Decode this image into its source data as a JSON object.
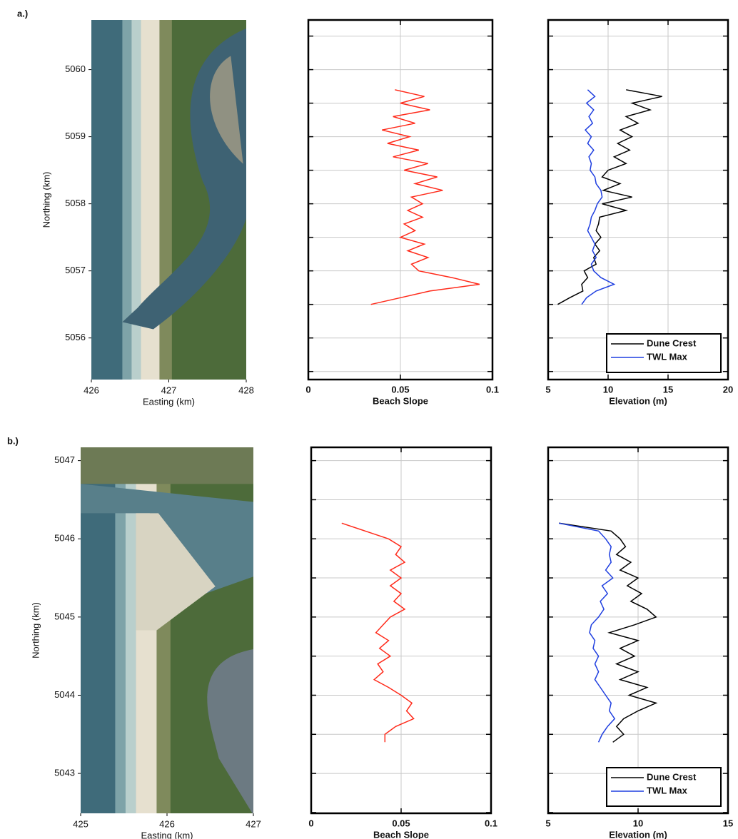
{
  "chart_data": [
    {
      "type": "image",
      "panel_label": "a.)",
      "xlabel": "Easting (km)",
      "ylabel": "Northing (km)",
      "xlim": [
        426,
        428
      ],
      "xticks": [
        426,
        427,
        428
      ],
      "ylim": [
        5055.38,
        5060.74
      ],
      "yticks": [
        5056,
        5057,
        5058,
        5059,
        5060
      ]
    },
    {
      "type": "line",
      "xlabel": "Beach Slope",
      "xlim": [
        0,
        0.1
      ],
      "xticks": [
        0,
        0.05,
        0.1
      ],
      "ylim": [
        5055.38,
        5060.74
      ],
      "yticks": [
        5055.5,
        5056,
        5056.5,
        5057,
        5057.5,
        5058,
        5058.5,
        5059,
        5059.5,
        5060,
        5060.5
      ],
      "ytick_labels": false,
      "grid": true,
      "y": [
        5059.7,
        5059.6,
        5059.5,
        5059.4,
        5059.3,
        5059.2,
        5059.1,
        5059.0,
        5058.9,
        5058.8,
        5058.7,
        5058.6,
        5058.5,
        5058.4,
        5058.3,
        5058.2,
        5058.1,
        5058.0,
        5057.9,
        5057.8,
        5057.7,
        5057.6,
        5057.5,
        5057.4,
        5057.3,
        5057.2,
        5057.1,
        5057.0,
        5056.9,
        5056.8,
        5056.7,
        5056.6,
        5056.5
      ],
      "series": [
        {
          "color": "#ff2a1a",
          "values": [
            0.047,
            0.063,
            0.05,
            0.066,
            0.046,
            0.058,
            0.04,
            0.055,
            0.043,
            0.06,
            0.046,
            0.065,
            0.052,
            0.07,
            0.058,
            0.073,
            0.056,
            0.062,
            0.054,
            0.062,
            0.052,
            0.058,
            0.05,
            0.063,
            0.054,
            0.065,
            0.056,
            0.06,
            0.078,
            0.093,
            0.066,
            0.05,
            0.034
          ]
        }
      ]
    },
    {
      "type": "line",
      "xlabel": "Elevation (m)",
      "xlim": [
        5,
        20
      ],
      "xticks": [
        5,
        10,
        15,
        20
      ],
      "ylim": [
        5055.38,
        5060.74
      ],
      "yticks": [
        5055.5,
        5056,
        5056.5,
        5057,
        5057.5,
        5058,
        5058.5,
        5059,
        5059.5,
        5060,
        5060.5
      ],
      "ytick_labels": false,
      "grid": true,
      "legend": "lower right",
      "y": [
        5059.7,
        5059.6,
        5059.5,
        5059.4,
        5059.3,
        5059.2,
        5059.1,
        5059.0,
        5058.9,
        5058.8,
        5058.7,
        5058.6,
        5058.5,
        5058.4,
        5058.3,
        5058.2,
        5058.1,
        5058.0,
        5057.9,
        5057.8,
        5057.7,
        5057.6,
        5057.5,
        5057.4,
        5057.3,
        5057.2,
        5057.1,
        5057.0,
        5056.9,
        5056.8,
        5056.7,
        5056.6,
        5056.5
      ],
      "series": [
        {
          "name": "Dune Crest",
          "color": "#000000",
          "values": [
            11.5,
            14.5,
            12.0,
            13.5,
            11.5,
            12.5,
            11.0,
            12.0,
            10.8,
            11.8,
            10.5,
            11.5,
            10.0,
            9.5,
            11.0,
            9.6,
            12.0,
            9.5,
            11.5,
            9.3,
            9.2,
            9.0,
            9.4,
            8.9,
            9.3,
            8.8,
            9.0,
            8.0,
            8.3,
            7.8,
            7.9,
            6.8,
            5.8
          ]
        },
        {
          "name": "TWL Max",
          "color": "#1f3fe0",
          "values": [
            8.3,
            8.9,
            8.2,
            8.8,
            8.4,
            8.7,
            8.1,
            8.6,
            8.3,
            8.8,
            8.4,
            8.6,
            8.5,
            8.9,
            9.0,
            9.4,
            9.5,
            9.1,
            8.9,
            8.6,
            8.5,
            8.3,
            8.6,
            8.9,
            8.7,
            9.0,
            8.6,
            8.8,
            9.4,
            10.5,
            9.0,
            8.2,
            7.8
          ]
        }
      ]
    },
    {
      "type": "image",
      "panel_label": "b.)",
      "xlabel": "Easting (km)",
      "ylabel": "Northing (km)",
      "xlim": [
        425,
        427
      ],
      "xticks": [
        425,
        426,
        427
      ],
      "ylim": [
        5042.49,
        5047.17
      ],
      "yticks": [
        5043,
        5044,
        5045,
        5046,
        5047
      ]
    },
    {
      "type": "line",
      "xlabel": "Beach Slope",
      "xlim": [
        0,
        0.1
      ],
      "xticks": [
        0,
        0.05,
        0.1
      ],
      "ylim": [
        5042.49,
        5047.17
      ],
      "yticks": [
        5042.5,
        5043,
        5043.5,
        5044,
        5044.5,
        5045,
        5045.5,
        5046,
        5046.5,
        5047
      ],
      "ytick_labels": false,
      "grid": true,
      "y": [
        5046.2,
        5046.1,
        5046.0,
        5045.9,
        5045.8,
        5045.7,
        5045.6,
        5045.5,
        5045.4,
        5045.3,
        5045.2,
        5045.1,
        5045.0,
        5044.9,
        5044.8,
        5044.7,
        5044.6,
        5044.5,
        5044.4,
        5044.3,
        5044.2,
        5044.1,
        5044.0,
        5043.9,
        5043.8,
        5043.7,
        5043.6,
        5043.5,
        5043.4
      ],
      "series": [
        {
          "color": "#ff2a1a",
          "values": [
            0.017,
            0.03,
            0.043,
            0.05,
            0.047,
            0.052,
            0.044,
            0.05,
            0.044,
            0.05,
            0.046,
            0.052,
            0.044,
            0.04,
            0.036,
            0.043,
            0.038,
            0.044,
            0.037,
            0.04,
            0.035,
            0.043,
            0.05,
            0.056,
            0.053,
            0.057,
            0.047,
            0.041,
            0.041
          ]
        }
      ]
    },
    {
      "type": "line",
      "xlabel": "Elevation (m)",
      "xlim": [
        5,
        15
      ],
      "xticks": [
        5,
        10,
        15
      ],
      "ylim": [
        5042.49,
        5047.17
      ],
      "yticks": [
        5042.5,
        5043,
        5043.5,
        5044,
        5044.5,
        5045,
        5045.5,
        5046,
        5046.5,
        5047
      ],
      "ytick_labels": false,
      "grid": true,
      "legend": "lower right",
      "y": [
        5046.2,
        5046.1,
        5046.0,
        5045.9,
        5045.8,
        5045.7,
        5045.6,
        5045.5,
        5045.4,
        5045.3,
        5045.2,
        5045.1,
        5045.0,
        5044.9,
        5044.8,
        5044.7,
        5044.6,
        5044.5,
        5044.4,
        5044.3,
        5044.2,
        5044.1,
        5044.0,
        5043.9,
        5043.8,
        5043.7,
        5043.6,
        5043.5,
        5043.4
      ],
      "series": [
        {
          "name": "Dune Crest",
          "color": "#000000",
          "values": [
            5.6,
            8.5,
            9.0,
            9.3,
            8.8,
            9.6,
            9.0,
            10.0,
            9.4,
            10.2,
            9.6,
            10.5,
            11.0,
            9.8,
            8.4,
            10.0,
            9.0,
            9.8,
            8.8,
            10.0,
            9.0,
            10.5,
            9.5,
            11.0,
            10.0,
            9.2,
            8.8,
            9.2,
            8.6
          ]
        },
        {
          "name": "TWL Max",
          "color": "#1f3fe0",
          "values": [
            5.6,
            7.8,
            8.2,
            8.5,
            8.4,
            8.5,
            8.2,
            8.6,
            8.0,
            8.3,
            7.9,
            8.1,
            7.8,
            7.4,
            7.3,
            7.6,
            7.5,
            7.8,
            7.6,
            7.8,
            7.6,
            7.9,
            8.2,
            8.5,
            8.4,
            8.7,
            8.3,
            8.0,
            7.8
          ]
        }
      ]
    }
  ]
}
